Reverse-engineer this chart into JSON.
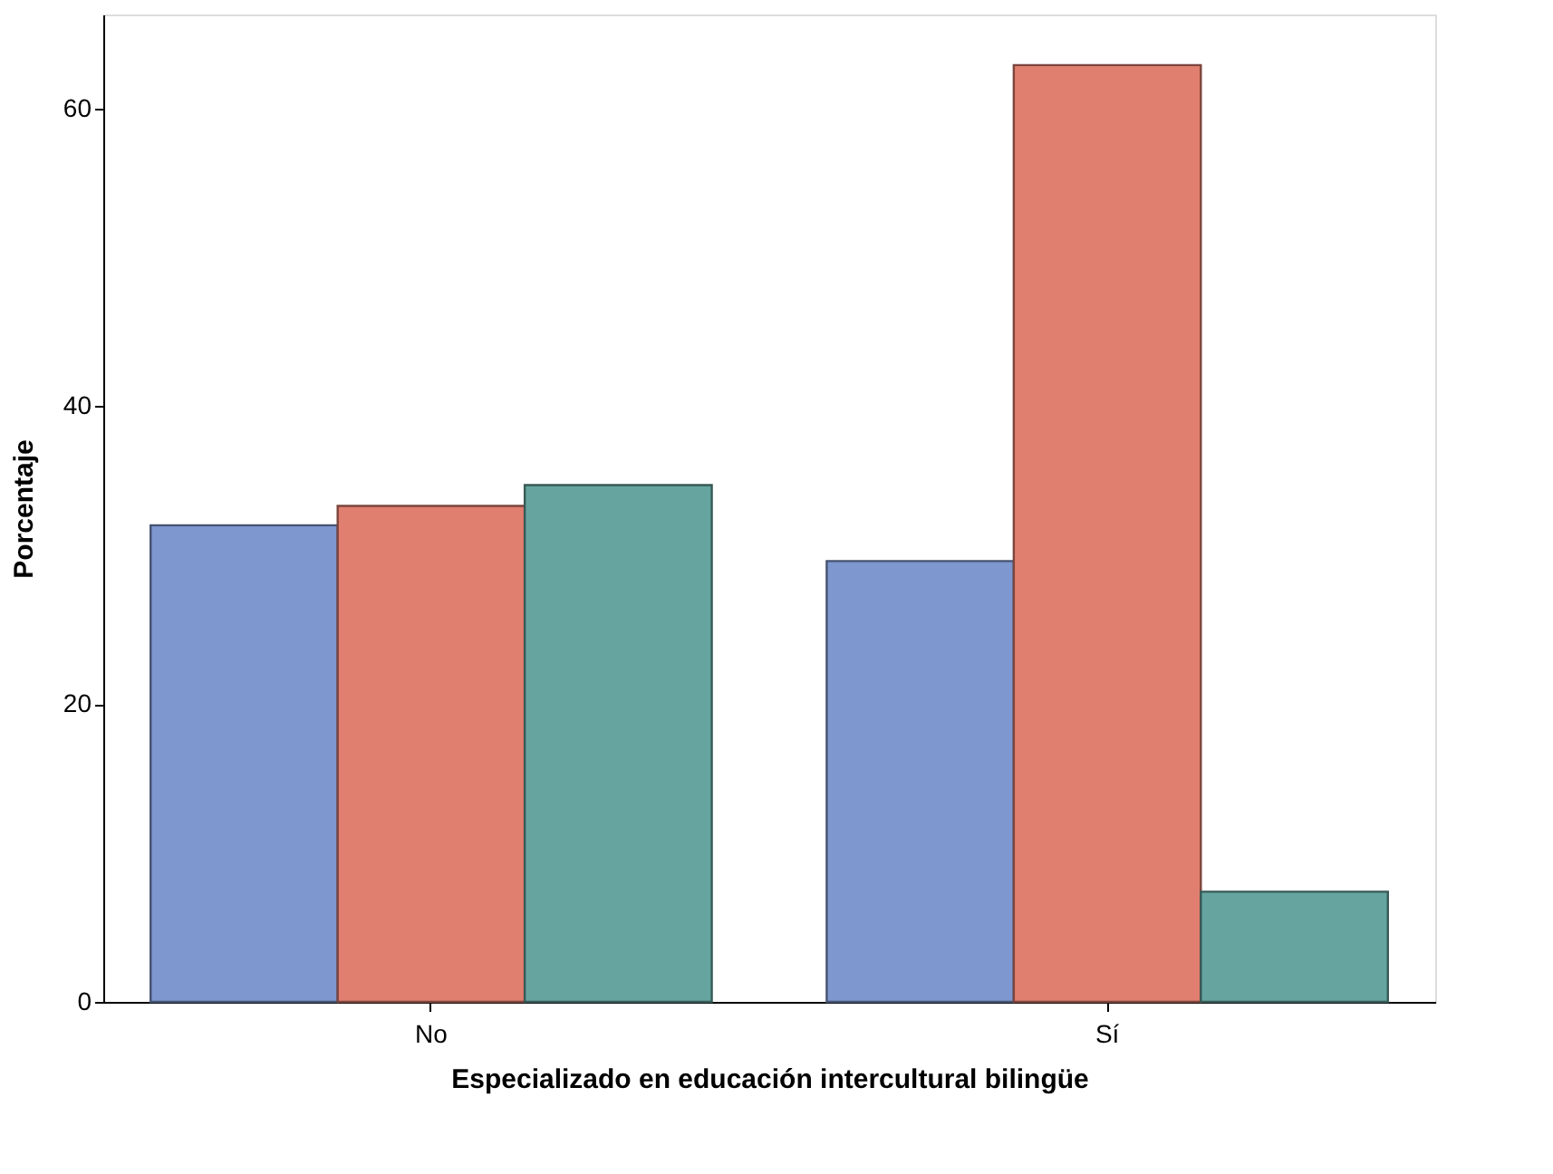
{
  "chart_data": {
    "type": "bar",
    "xlabel": "Especializado en educación intercultural bilingüe",
    "ylabel": "Porcentaje",
    "categories": [
      "No",
      "Sí"
    ],
    "series": [
      {
        "color": "#7f97cf",
        "values": [
          32.0,
          29.6
        ]
      },
      {
        "color": "#e07f6f",
        "values": [
          33.3,
          62.9
        ]
      },
      {
        "color": "#66a59f",
        "values": [
          34.7,
          7.4
        ]
      }
    ],
    "ylim": [
      0,
      66.3
    ],
    "yticks": [
      0,
      20,
      40,
      60
    ],
    "grid": false,
    "legend": false
  }
}
